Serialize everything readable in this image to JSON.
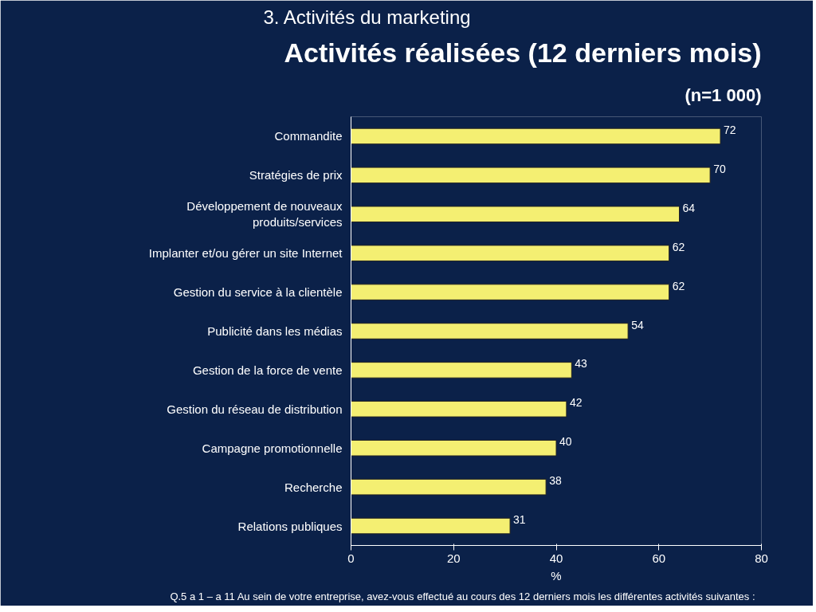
{
  "chart_data": {
    "type": "bar",
    "orientation": "horizontal",
    "title": "Activités réalisées (12 derniers mois)",
    "subtitle": "(n=1 000)",
    "xlabel": "%",
    "annotations": [
      "3. Activités du marketing",
      "Q.5 a 1 – a 11   Au sein de votre entreprise, avez-vous effectué au cours des 12 derniers mois les différentes activités suivantes :"
    ],
    "categories": [
      "Commandite",
      "Stratégies de prix",
      "Développement de nouveaux produits/services",
      "Implanter et/ou gérer un site Internet",
      "Gestion du service à la clientèle",
      "Publicité dans les médias",
      "Gestion de la force de vente",
      "Gestion du réseau de distribution",
      "Campagne promotionnelle",
      "Recherche",
      "Relations publiques"
    ],
    "values": [
      72,
      70,
      64,
      62,
      62,
      54,
      43,
      42,
      40,
      38,
      31
    ],
    "color": "#f4ef72",
    "xlim": [
      0,
      80
    ],
    "xticks": [
      0,
      20,
      40,
      60,
      80
    ],
    "data_labels": true,
    "grid": false
  }
}
